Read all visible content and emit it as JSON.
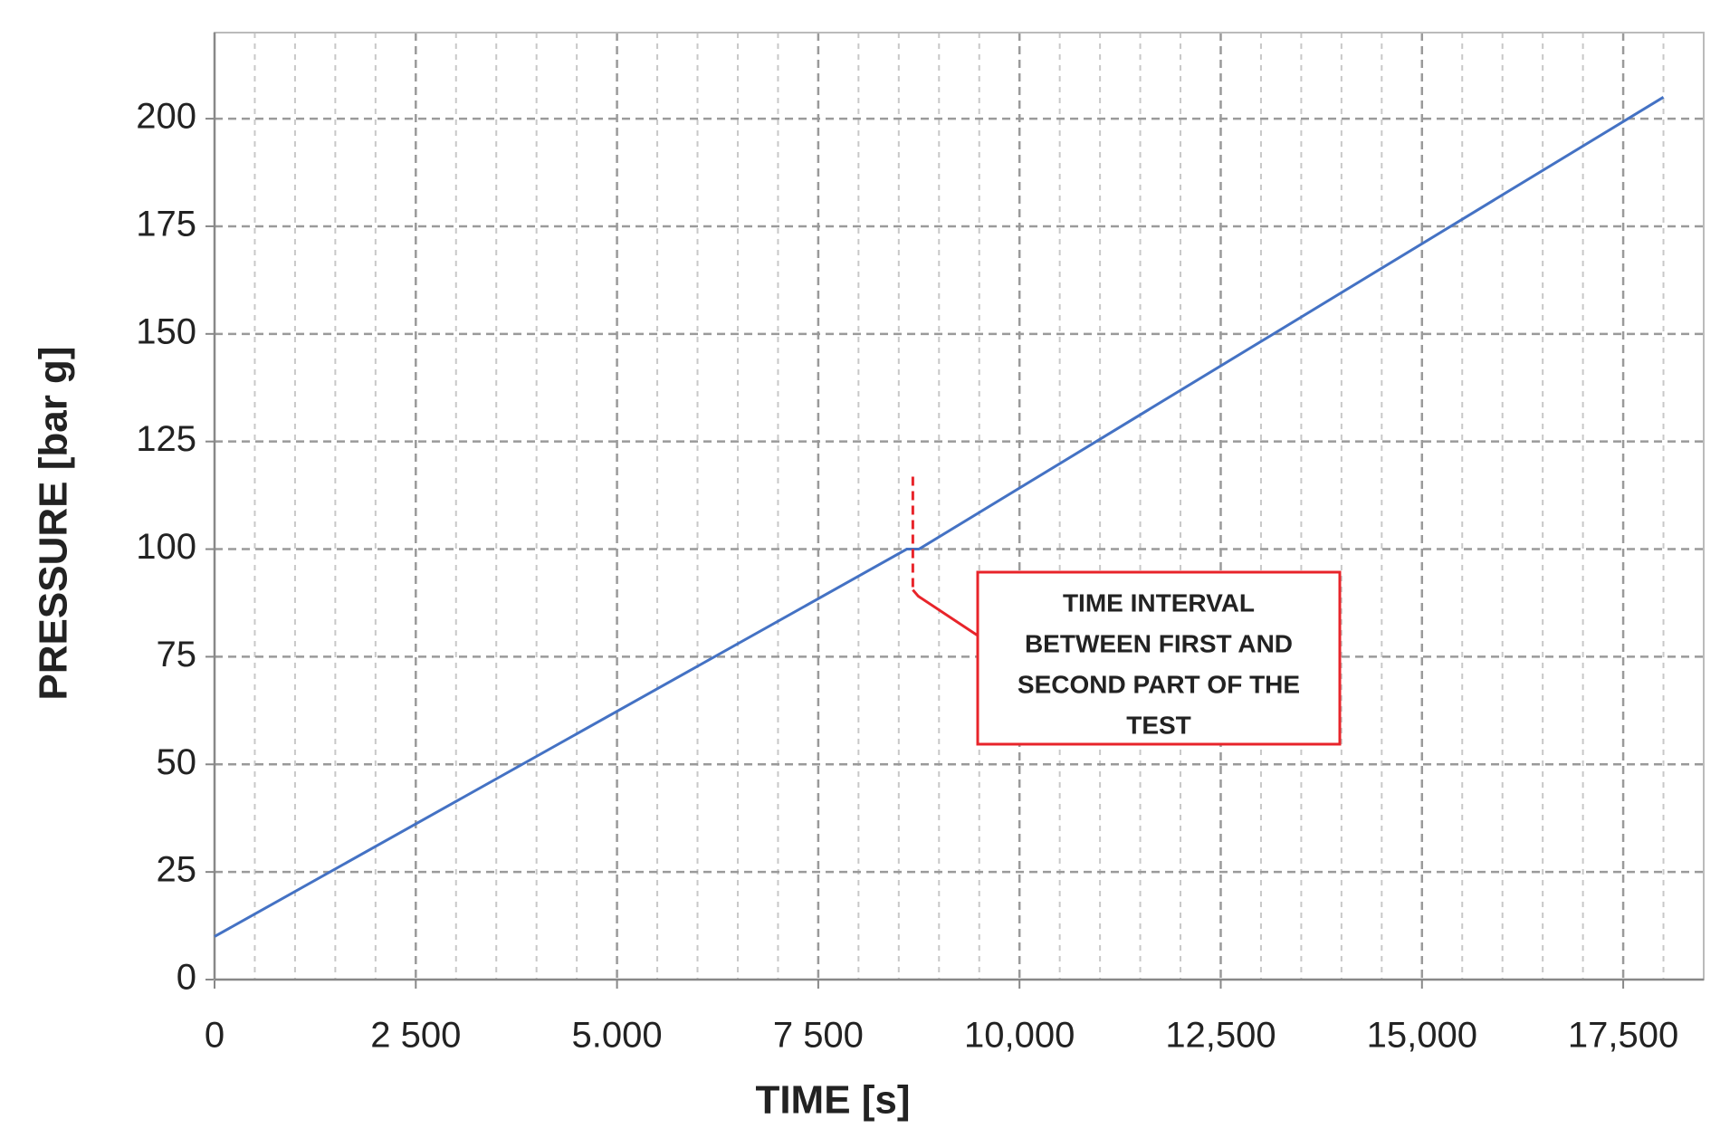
{
  "chart_data": {
    "type": "line",
    "x_label": "TIME [s]",
    "y_label": "PRESSURE [bar g]",
    "series": [
      {
        "color": "#4472c4",
        "x": [
          0,
          8600,
          8750,
          18000
        ],
        "values": [
          10,
          100,
          100,
          205
        ]
      }
    ],
    "xlim": [
      0,
      18500
    ],
    "xticks": [
      0,
      {
        "value": 2500,
        "label": "2 500"
      },
      {
        "value": 5000,
        "label": "5.000"
      },
      {
        "value": 7500,
        "label": "7 500"
      },
      {
        "value": 10000,
        "label": "10,000"
      },
      {
        "value": 12500,
        "label": "12,500"
      },
      {
        "value": 15000,
        "label": "15,000"
      },
      {
        "value": 17500,
        "label": "17,500"
      }
    ],
    "ylim": [
      0,
      220
    ],
    "yticks": [
      0,
      25,
      50,
      75,
      100,
      125,
      150,
      175,
      200
    ],
    "grid": true,
    "annotation": {
      "lines": [
        "TIME INTERVAL",
        "BETWEEN FIRST AND",
        "SECOND PART OF THE",
        "TEST"
      ],
      "color": "#e8242a"
    }
  }
}
